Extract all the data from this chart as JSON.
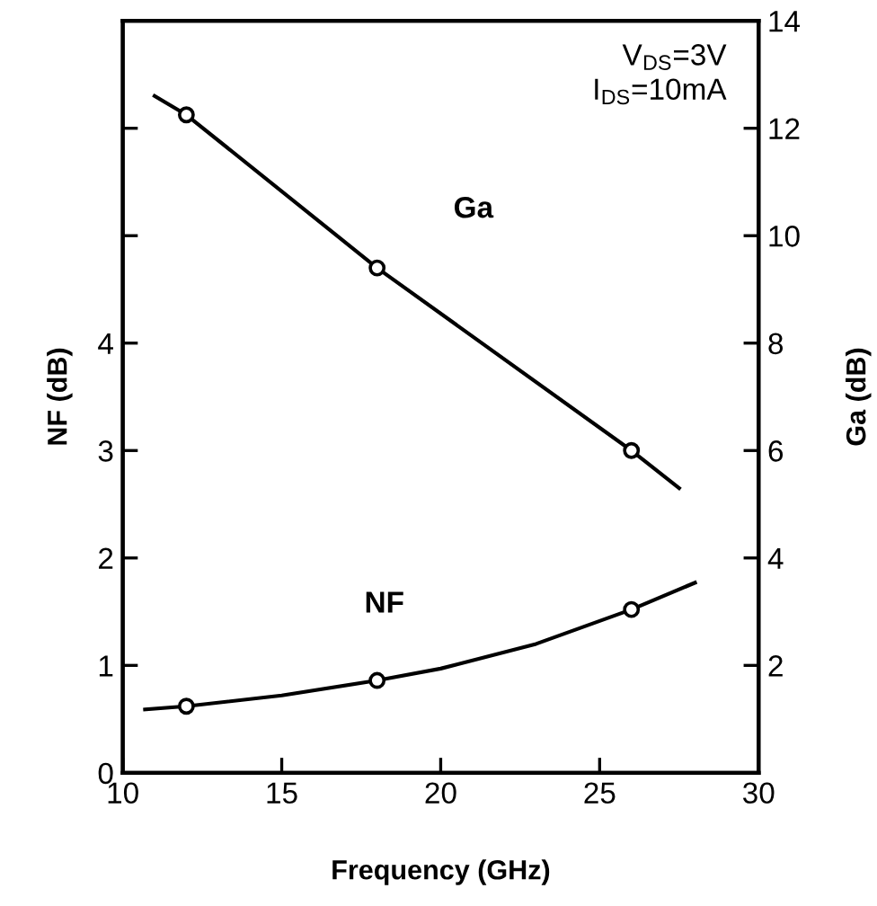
{
  "chart_data": {
    "type": "line",
    "xlabel": "Frequency (GHz)",
    "ylabel": "NF (dB)",
    "y2label": "Ga (dB)",
    "xlim": [
      10,
      30
    ],
    "xticks": [
      10,
      15,
      20,
      25,
      30
    ],
    "ylim": [
      0,
      7
    ],
    "yticks": [
      0,
      1,
      2,
      3,
      4,
      {
        "value": 5,
        "label": null
      },
      {
        "value": 6,
        "label": null
      }
    ],
    "y2lim": [
      0,
      14
    ],
    "y2ticks": [
      2,
      4,
      6,
      8,
      10,
      12,
      14
    ],
    "grid": false,
    "legend": false,
    "series": [
      {
        "axis": "y2",
        "color": "#000000",
        "marker": "none",
        "line_style": "solid",
        "x": [
          11,
          12,
          18,
          26,
          27.5
        ],
        "values": [
          12.6,
          12.25,
          9.4,
          6.0,
          5.3
        ]
      },
      {
        "type": "scatter",
        "axis": "y2",
        "color": "#000000",
        "marker": "circle",
        "x": [
          12,
          18,
          26
        ],
        "values": [
          12.25,
          9.4,
          6.0
        ]
      },
      {
        "color": "#000000",
        "marker": "none",
        "line_style": "solid",
        "x": [
          10.7,
          12,
          15,
          18,
          20,
          23,
          26,
          28
        ],
        "values": [
          0.59,
          0.62,
          0.72,
          0.86,
          0.97,
          1.2,
          1.52,
          1.77
        ]
      },
      {
        "type": "scatter",
        "color": "#000000",
        "marker": "circle",
        "x": [
          12,
          18,
          26
        ],
        "values": [
          0.62,
          0.86,
          1.52
        ]
      }
    ],
    "annotations": [
      "Ga",
      "NF",
      "V$_{DS}$=3V\nI$_{DS}$=10mA"
    ]
  }
}
